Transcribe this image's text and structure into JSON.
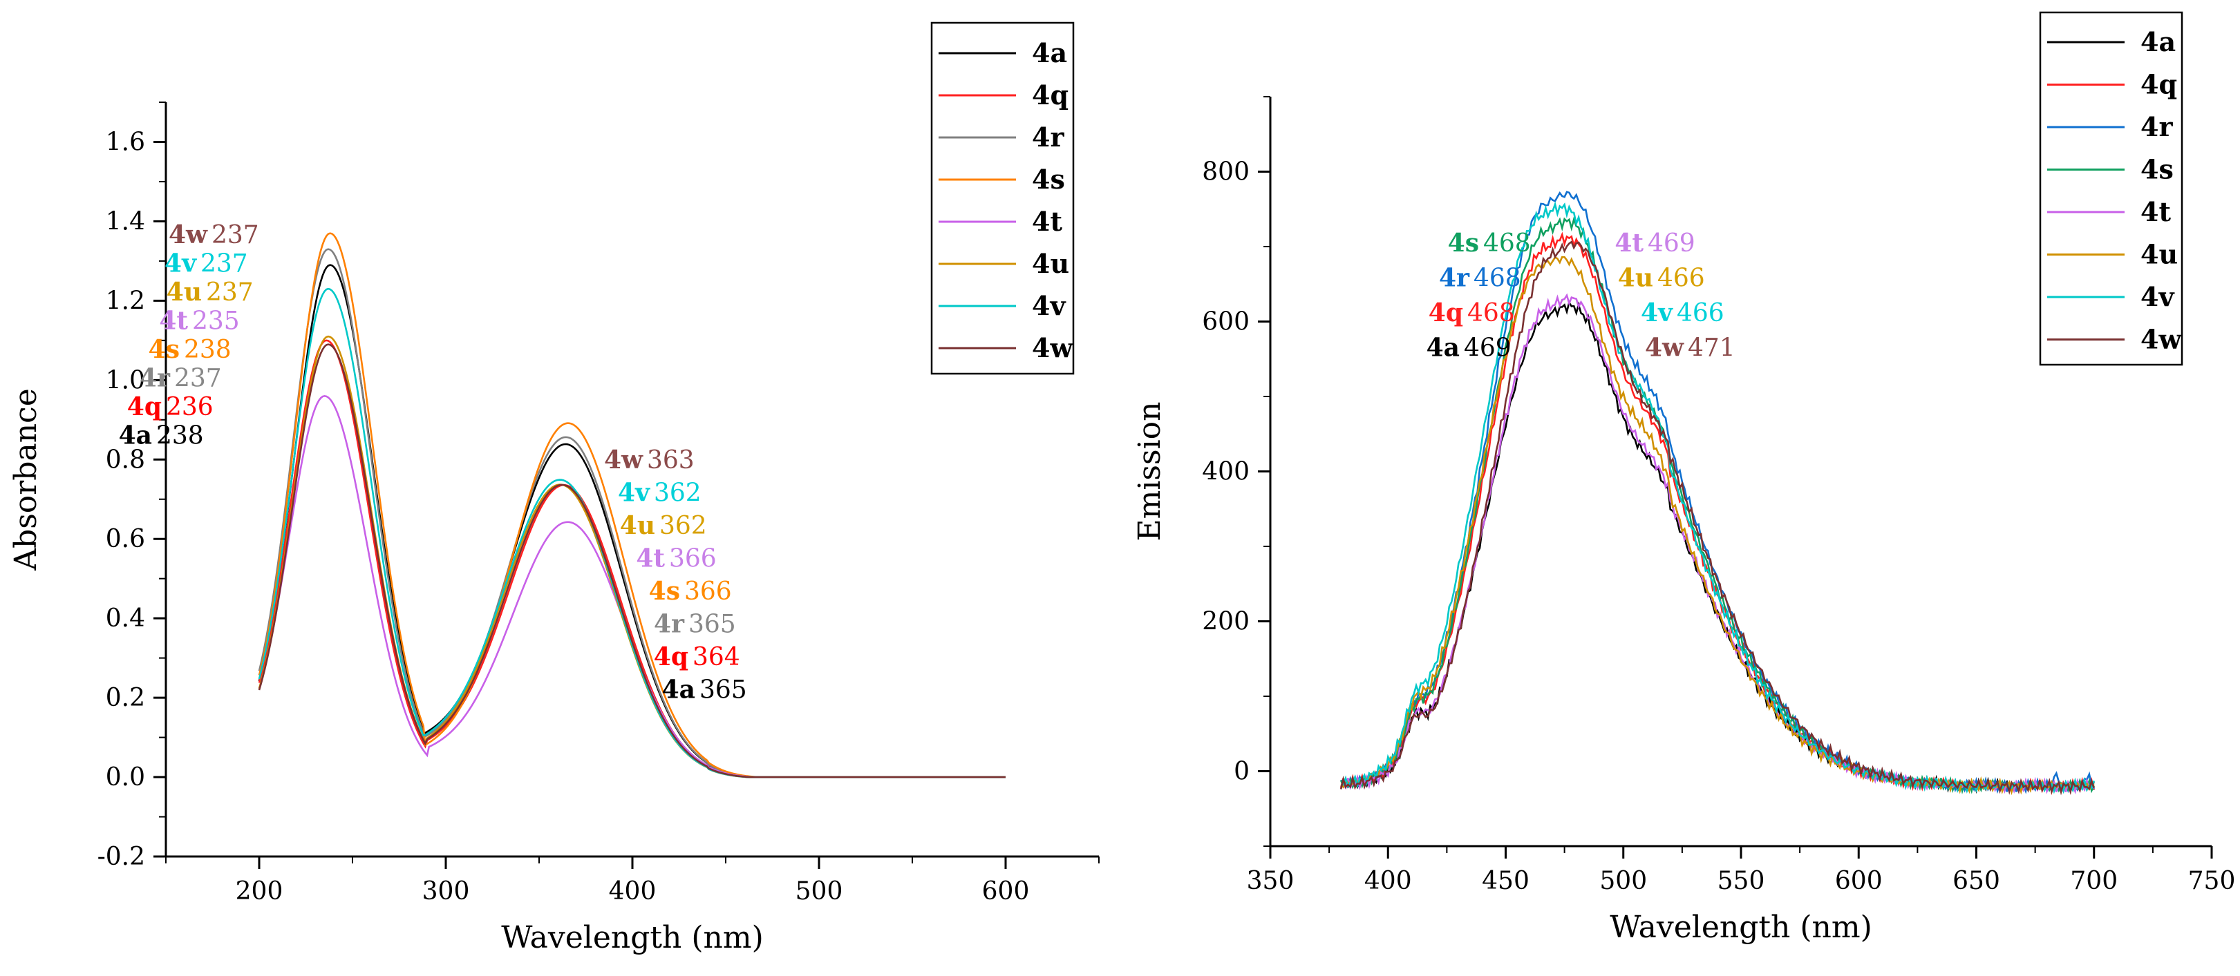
{
  "chart_data": [
    {
      "type": "line",
      "panel": "left",
      "xlabel": "Wavelength (nm)",
      "ylabel": "Absorbance",
      "xlim": [
        150,
        650
      ],
      "ylim": [
        -0.2,
        1.7
      ],
      "xticks": [
        200,
        300,
        400,
        500,
        600
      ],
      "yticks": [
        -0.2,
        0.0,
        0.2,
        0.4,
        0.6,
        0.8,
        1.0,
        1.2,
        1.4,
        1.6
      ],
      "xtick_labels": [
        "200",
        "300",
        "400",
        "500",
        "600"
      ],
      "ytick_labels": [
        "-0.2",
        "0.0",
        "0.2",
        "0.4",
        "0.6",
        "0.8",
        "1.0",
        "1.2",
        "1.4",
        "1.6"
      ],
      "legend_position": "top-right",
      "series": [
        {
          "name": "4a",
          "color": "#000000",
          "peak1": [
            238,
            1.29
          ],
          "peak2": [
            365,
            0.82
          ],
          "valley": [
            288,
            0.08
          ]
        },
        {
          "name": "4q",
          "color": "#ff2020",
          "peak1": [
            236,
            1.1
          ],
          "peak2": [
            364,
            0.72
          ],
          "valley": [
            290,
            0.06
          ]
        },
        {
          "name": "4r",
          "color": "#808080",
          "peak1": [
            237,
            1.33
          ],
          "peak2": [
            365,
            0.84
          ],
          "valley": [
            288,
            0.07
          ]
        },
        {
          "name": "4s",
          "color": "#ff8000",
          "peak1": [
            238,
            1.37
          ],
          "peak2": [
            366,
            0.88
          ],
          "valley": [
            289,
            0.05
          ]
        },
        {
          "name": "4t",
          "color": "#c860e8",
          "peak1": [
            235,
            0.96
          ],
          "peak2": [
            366,
            0.63
          ],
          "valley": [
            291,
            0.05
          ]
        },
        {
          "name": "4u",
          "color": "#d09000",
          "peak1": [
            237,
            1.11
          ],
          "peak2": [
            362,
            0.72
          ],
          "valley": [
            290,
            0.06
          ]
        },
        {
          "name": "4v",
          "color": "#00c8c8",
          "peak1": [
            237,
            1.23
          ],
          "peak2": [
            362,
            0.73
          ],
          "valley": [
            289,
            0.07
          ]
        },
        {
          "name": "4w",
          "color": "#7a3030",
          "peak1": [
            237,
            1.09
          ],
          "peak2": [
            363,
            0.72
          ],
          "valley": [
            290,
            0.06
          ]
        }
      ],
      "annotations_left": [
        {
          "label": "4w",
          "value": "237",
          "color": "#8b4a4a"
        },
        {
          "label": "4v",
          "value": "237",
          "color": "#00d0d8"
        },
        {
          "label": "4u",
          "value": "237",
          "color": "#d8a000"
        },
        {
          "label": "4t",
          "value": "235",
          "color": "#c880e8"
        },
        {
          "label": "4s",
          "value": "238",
          "color": "#ff8a00"
        },
        {
          "label": "4r",
          "value": "237",
          "color": "#888888"
        },
        {
          "label": "4q",
          "value": "236",
          "color": "#ff0000"
        },
        {
          "label": "4a",
          "value": "238",
          "color": "#000000"
        }
      ],
      "annotations_right": [
        {
          "label": "4w",
          "value": "363",
          "color": "#8b4a4a"
        },
        {
          "label": "4v",
          "value": "362",
          "color": "#00d0d8"
        },
        {
          "label": "4u",
          "value": "362",
          "color": "#d8a000"
        },
        {
          "label": "4t",
          "value": "366",
          "color": "#c880e8"
        },
        {
          "label": "4s",
          "value": "366",
          "color": "#ff8a00"
        },
        {
          "label": "4r",
          "value": "365",
          "color": "#888888"
        },
        {
          "label": "4q",
          "value": "364",
          "color": "#ff0000"
        },
        {
          "label": "4a",
          "value": "365",
          "color": "#000000"
        }
      ]
    },
    {
      "type": "line",
      "panel": "right",
      "xlabel": "Wavelength (nm)",
      "ylabel": "Emission",
      "xlim": [
        350,
        750
      ],
      "ylim": [
        -100,
        900
      ],
      "xticks": [
        350,
        400,
        450,
        500,
        550,
        600,
        650,
        700,
        750
      ],
      "yticks": [
        0,
        200,
        400,
        600,
        800
      ],
      "xtick_labels": [
        "350",
        "400",
        "450",
        "500",
        "550",
        "600",
        "650",
        "700",
        "750"
      ],
      "ytick_labels": [
        "0",
        "200",
        "400",
        "600",
        "800"
      ],
      "legend_position": "top-right",
      "series": [
        {
          "name": "4a",
          "color": "#000000",
          "peak": [
            469,
            610
          ]
        },
        {
          "name": "4q",
          "color": "#ff2020",
          "peak": [
            468,
            700
          ]
        },
        {
          "name": "4r",
          "color": "#1070d0",
          "peak": [
            468,
            758
          ]
        },
        {
          "name": "4s",
          "color": "#10a060",
          "peak": [
            468,
            722
          ]
        },
        {
          "name": "4t",
          "color": "#c860e8",
          "peak": [
            469,
            620
          ]
        },
        {
          "name": "4u",
          "color": "#d09000",
          "peak": [
            466,
            675
          ]
        },
        {
          "name": "4v",
          "color": "#00c8c8",
          "peak": [
            466,
            742
          ]
        },
        {
          "name": "4w",
          "color": "#7a3030",
          "peak": [
            471,
            690
          ]
        }
      ],
      "annotations_left": [
        {
          "label": "4s",
          "value": "468",
          "color": "#10a060"
        },
        {
          "label": "4r",
          "value": "468",
          "color": "#1070d0"
        },
        {
          "label": "4q",
          "value": "468",
          "color": "#ff2020"
        },
        {
          "label": "4a",
          "value": "469",
          "color": "#000000"
        }
      ],
      "annotations_right": [
        {
          "label": "4t",
          "value": "469",
          "color": "#c880e8"
        },
        {
          "label": "4u",
          "value": "466",
          "color": "#d8a000"
        },
        {
          "label": "4v",
          "value": "466",
          "color": "#00d0d8"
        },
        {
          "label": "4w",
          "value": "471",
          "color": "#8b4a4a"
        }
      ]
    }
  ]
}
